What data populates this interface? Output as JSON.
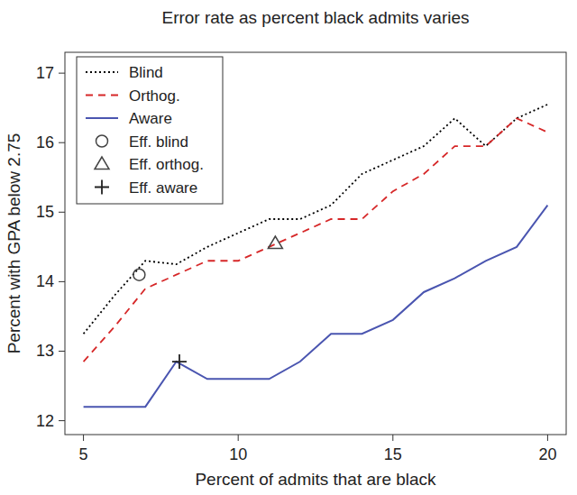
{
  "chart_data": {
    "type": "line",
    "title": "Error rate as percent black admits varies",
    "x_label": "Percent of admits that are black",
    "y_label": "Percent with GPA below 2.75",
    "x": [
      5,
      6,
      7,
      8,
      9,
      10,
      11,
      12,
      13,
      14,
      15,
      16,
      17,
      18,
      19,
      20
    ],
    "series": [
      {
        "name": "Blind",
        "color": "#000000",
        "line_style": "dotted",
        "values": [
          13.25,
          13.8,
          14.3,
          14.25,
          14.5,
          14.7,
          14.9,
          14.9,
          15.1,
          15.55,
          15.75,
          15.95,
          16.35,
          15.95,
          16.35,
          16.55
        ]
      },
      {
        "name": "Orthog.",
        "color": "#d62728",
        "line_style": "dashed",
        "values": [
          12.85,
          13.35,
          13.9,
          14.1,
          14.3,
          14.3,
          14.5,
          14.7,
          14.9,
          14.9,
          15.3,
          15.55,
          15.95,
          15.95,
          16.35,
          16.15
        ]
      },
      {
        "name": "Aware",
        "color": "#4a55b0",
        "line_style": "solid",
        "values": [
          12.2,
          12.2,
          12.2,
          12.85,
          12.6,
          12.6,
          12.6,
          12.85,
          13.25,
          13.25,
          13.45,
          13.85,
          14.05,
          14.3,
          14.5,
          15.1
        ]
      },
      {
        "name": "Eff. blind",
        "type": "scatter",
        "marker": "circle",
        "color": "#444444",
        "x": [
          6.8
        ],
        "values": [
          14.1
        ]
      },
      {
        "name": "Eff. orthog.",
        "type": "scatter",
        "marker": "triangle",
        "color": "#444444",
        "x": [
          11.2
        ],
        "values": [
          14.55
        ]
      },
      {
        "name": "Eff. aware",
        "type": "scatter",
        "marker": "plus",
        "color": "#222222",
        "x": [
          8.1
        ],
        "values": [
          12.85
        ]
      }
    ],
    "xlim": [
      4.4,
      20.6
    ],
    "xticks": [
      5,
      10,
      15,
      20
    ],
    "ylim": [
      11.8,
      17.3
    ],
    "yticks": [
      12,
      13,
      14,
      15,
      16,
      17
    ],
    "legend": "top-left",
    "grid": false
  }
}
